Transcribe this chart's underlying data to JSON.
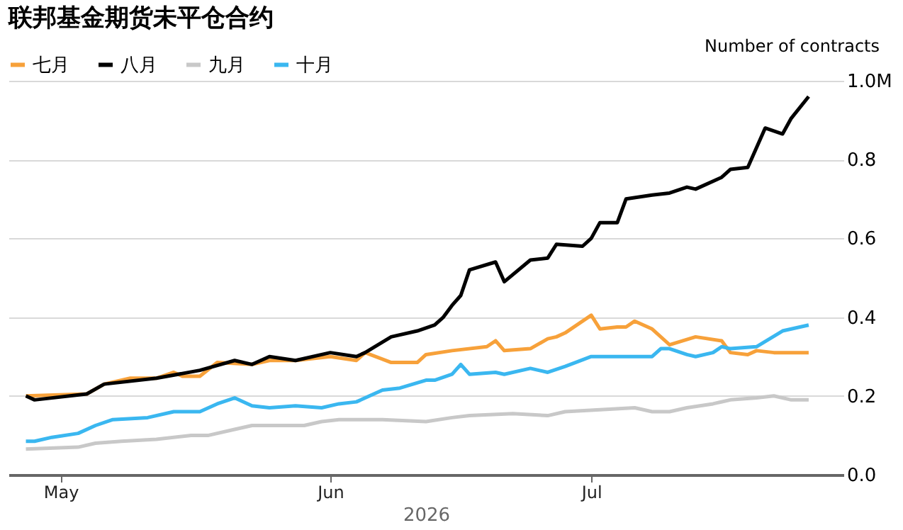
{
  "chart_data": {
    "type": "line",
    "title": "联邦基金期货未平仓合约",
    "ylabel": "Number of contracts",
    "xlabel": "2026",
    "xlim": [
      "2026-04-25",
      "2026-07-30"
    ],
    "xticks": [
      {
        "value": "2026-05-01",
        "label": "May"
      },
      {
        "value": "2026-06-01",
        "label": "Jun"
      },
      {
        "value": "2026-07-01",
        "label": "Jul"
      }
    ],
    "ylim": [
      0,
      1.0
    ],
    "yticks": [
      {
        "value": 0,
        "label": "0.0"
      },
      0.2,
      0.4,
      0.6,
      0.8,
      {
        "value": 1.0,
        "label": "1.0M"
      }
    ],
    "grid": "y",
    "legend": "top left",
    "marker": "none",
    "line_style": "solid",
    "series": [
      {
        "name": "七月",
        "color": "#f7a13a",
        "x": [
          "2026-04-27",
          "2026-05-04",
          "2026-05-06",
          "2026-05-09",
          "2026-05-12",
          "2026-05-14",
          "2026-05-15",
          "2026-05-17",
          "2026-05-19",
          "2026-05-23",
          "2026-05-25",
          "2026-05-28",
          "2026-06-01",
          "2026-06-04",
          "2026-06-05",
          "2026-06-08",
          "2026-06-11",
          "2026-06-12",
          "2026-06-15",
          "2026-06-19",
          "2026-06-20",
          "2026-06-21",
          "2026-06-24",
          "2026-06-26",
          "2026-06-27",
          "2026-06-28",
          "2026-07-01",
          "2026-07-02",
          "2026-07-04",
          "2026-07-05",
          "2026-07-06",
          "2026-07-08",
          "2026-07-10",
          "2026-07-13",
          "2026-07-16",
          "2026-07-17",
          "2026-07-19",
          "2026-07-20",
          "2026-07-22",
          "2026-07-26"
        ],
        "values": [
          0.2,
          0.205,
          0.23,
          0.245,
          0.245,
          0.26,
          0.25,
          0.25,
          0.285,
          0.28,
          0.29,
          0.29,
          0.3,
          0.29,
          0.31,
          0.285,
          0.285,
          0.305,
          0.315,
          0.325,
          0.34,
          0.315,
          0.32,
          0.345,
          0.35,
          0.36,
          0.405,
          0.37,
          0.375,
          0.375,
          0.39,
          0.37,
          0.33,
          0.35,
          0.34,
          0.31,
          0.305,
          0.315,
          0.31,
          0.31
        ]
      },
      {
        "name": "八月",
        "color": "#000000",
        "x": [
          "2026-04-27",
          "2026-04-28",
          "2026-05-04",
          "2026-05-06",
          "2026-05-12",
          "2026-05-17",
          "2026-05-21",
          "2026-05-23",
          "2026-05-25",
          "2026-05-28",
          "2026-06-01",
          "2026-06-04",
          "2026-06-05",
          "2026-06-08",
          "2026-06-11",
          "2026-06-13",
          "2026-06-14",
          "2026-06-15",
          "2026-06-16",
          "2026-06-17",
          "2026-06-20",
          "2026-06-21",
          "2026-06-24",
          "2026-06-26",
          "2026-06-27",
          "2026-06-30",
          "2026-07-01",
          "2026-07-02",
          "2026-07-04",
          "2026-07-05",
          "2026-07-08",
          "2026-07-10",
          "2026-07-12",
          "2026-07-13",
          "2026-07-16",
          "2026-07-17",
          "2026-07-19",
          "2026-07-21",
          "2026-07-23",
          "2026-07-24",
          "2026-07-26"
        ],
        "values": [
          0.2,
          0.19,
          0.205,
          0.23,
          0.245,
          0.265,
          0.29,
          0.28,
          0.3,
          0.29,
          0.31,
          0.3,
          0.31,
          0.35,
          0.365,
          0.38,
          0.4,
          0.43,
          0.455,
          0.52,
          0.54,
          0.49,
          0.545,
          0.55,
          0.585,
          0.58,
          0.6,
          0.64,
          0.64,
          0.7,
          0.71,
          0.715,
          0.73,
          0.725,
          0.755,
          0.775,
          0.78,
          0.88,
          0.865,
          0.905,
          0.96
        ]
      },
      {
        "name": "九月",
        "color": "#c8c8c8",
        "x": [
          "2026-04-27",
          "2026-05-03",
          "2026-05-05",
          "2026-05-08",
          "2026-05-12",
          "2026-05-16",
          "2026-05-18",
          "2026-05-21",
          "2026-05-23",
          "2026-05-29",
          "2026-05-31",
          "2026-06-02",
          "2026-06-07",
          "2026-06-12",
          "2026-06-15",
          "2026-06-17",
          "2026-06-22",
          "2026-06-26",
          "2026-06-28",
          "2026-07-02",
          "2026-07-06",
          "2026-07-08",
          "2026-07-10",
          "2026-07-12",
          "2026-07-15",
          "2026-07-17",
          "2026-07-20",
          "2026-07-22",
          "2026-07-24",
          "2026-07-26"
        ],
        "values": [
          0.065,
          0.07,
          0.08,
          0.085,
          0.09,
          0.1,
          0.1,
          0.115,
          0.125,
          0.125,
          0.135,
          0.14,
          0.14,
          0.135,
          0.145,
          0.15,
          0.155,
          0.15,
          0.16,
          0.165,
          0.17,
          0.16,
          0.16,
          0.17,
          0.18,
          0.19,
          0.195,
          0.2,
          0.19,
          0.19
        ]
      },
      {
        "name": "十月",
        "color": "#3ab7f0",
        "x": [
          "2026-04-27",
          "2026-04-28",
          "2026-04-30",
          "2026-05-03",
          "2026-05-05",
          "2026-05-07",
          "2026-05-11",
          "2026-05-14",
          "2026-05-17",
          "2026-05-19",
          "2026-05-21",
          "2026-05-23",
          "2026-05-25",
          "2026-05-28",
          "2026-05-31",
          "2026-06-02",
          "2026-06-04",
          "2026-06-07",
          "2026-06-09",
          "2026-06-12",
          "2026-06-13",
          "2026-06-15",
          "2026-06-16",
          "2026-06-17",
          "2026-06-20",
          "2026-06-21",
          "2026-06-24",
          "2026-06-26",
          "2026-06-28",
          "2026-07-01",
          "2026-07-05",
          "2026-07-08",
          "2026-07-09",
          "2026-07-10",
          "2026-07-12",
          "2026-07-13",
          "2026-07-15",
          "2026-07-16",
          "2026-07-17",
          "2026-07-20",
          "2026-07-23",
          "2026-07-26"
        ],
        "values": [
          0.085,
          0.085,
          0.095,
          0.105,
          0.125,
          0.14,
          0.145,
          0.16,
          0.16,
          0.18,
          0.195,
          0.175,
          0.17,
          0.175,
          0.17,
          0.18,
          0.185,
          0.215,
          0.22,
          0.24,
          0.24,
          0.255,
          0.28,
          0.255,
          0.26,
          0.255,
          0.27,
          0.26,
          0.275,
          0.3,
          0.3,
          0.3,
          0.32,
          0.32,
          0.305,
          0.3,
          0.31,
          0.325,
          0.32,
          0.325,
          0.365,
          0.38
        ]
      }
    ]
  }
}
